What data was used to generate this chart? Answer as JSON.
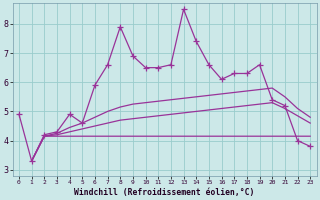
{
  "xlabel": "Windchill (Refroidissement éolien,°C)",
  "bg_color": "#cce8e8",
  "grid_color": "#99cccc",
  "line_color": "#993399",
  "xlim": [
    -0.5,
    23.5
  ],
  "ylim": [
    2.8,
    8.7
  ],
  "yticks": [
    3,
    4,
    5,
    6,
    7,
    8
  ],
  "xticks": [
    0,
    1,
    2,
    3,
    4,
    5,
    6,
    7,
    8,
    9,
    10,
    11,
    12,
    13,
    14,
    15,
    16,
    17,
    18,
    19,
    20,
    21,
    22,
    23
  ],
  "s1_x": [
    0,
    1,
    2,
    3,
    4,
    5,
    6,
    7,
    8,
    9,
    10,
    11,
    12,
    13,
    14,
    15,
    16,
    17,
    18,
    19,
    20,
    21,
    22,
    23
  ],
  "s1_y": [
    4.9,
    3.3,
    4.2,
    4.3,
    4.9,
    4.6,
    5.9,
    6.6,
    7.9,
    6.9,
    6.5,
    6.5,
    6.6,
    8.5,
    7.4,
    6.6,
    6.1,
    6.3,
    6.3,
    6.6,
    5.4,
    5.2,
    4.0,
    3.8
  ],
  "s2_x": [
    1,
    2,
    3,
    4,
    5,
    6,
    7,
    8,
    9,
    10,
    11,
    12,
    13,
    14,
    15,
    16,
    17,
    18,
    19,
    20,
    21,
    22,
    23
  ],
  "s2_y": [
    3.3,
    4.15,
    4.15,
    4.15,
    4.15,
    4.15,
    4.15,
    4.15,
    4.15,
    4.15,
    4.15,
    4.15,
    4.15,
    4.15,
    4.15,
    4.15,
    4.15,
    4.15,
    4.15,
    4.15,
    4.15,
    4.15,
    4.15
  ],
  "s3_x": [
    1,
    2,
    3,
    4,
    5,
    6,
    7,
    8,
    9,
    10,
    11,
    12,
    13,
    14,
    15,
    16,
    17,
    18,
    19,
    20,
    21,
    22,
    23
  ],
  "s3_y": [
    3.3,
    4.15,
    4.2,
    4.3,
    4.4,
    4.5,
    4.6,
    4.7,
    4.75,
    4.8,
    4.85,
    4.9,
    4.95,
    5.0,
    5.05,
    5.1,
    5.15,
    5.2,
    5.25,
    5.3,
    5.1,
    4.85,
    4.6
  ],
  "s4_x": [
    1,
    2,
    3,
    4,
    5,
    6,
    7,
    8,
    9,
    10,
    11,
    12,
    13,
    14,
    15,
    16,
    17,
    18,
    19,
    20,
    21,
    22,
    23
  ],
  "s4_y": [
    3.3,
    4.15,
    4.25,
    4.45,
    4.6,
    4.8,
    5.0,
    5.15,
    5.25,
    5.3,
    5.35,
    5.4,
    5.45,
    5.5,
    5.55,
    5.6,
    5.65,
    5.7,
    5.75,
    5.8,
    5.5,
    5.1,
    4.8
  ]
}
